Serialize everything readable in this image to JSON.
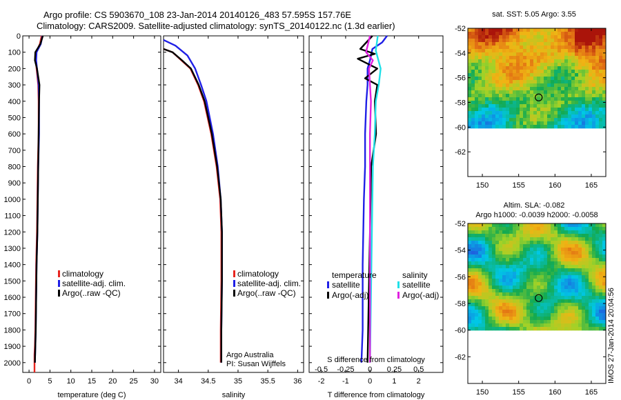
{
  "header": {
    "line1": "Argo profile: CS 5903670_108 23-Jan-2014 20140126_483 57.595S 157.76E",
    "line2": "Climatology: CARS2009. Satellite-adjusted climatology: synTS_20140122.nc (1.3d earlier)"
  },
  "credits": {
    "agency": "Argo Australia",
    "pi": "PI: Susan Wijffels",
    "stamp": "IMOS 27-Jan-2014 20:04:56"
  },
  "colors": {
    "climatology": "#e8251f",
    "satellite_adj": "#1f1fe6",
    "argo": "#000000",
    "sal_satellite": "#20e0e8",
    "sal_argo": "#e020e0"
  },
  "chart_data": [
    {
      "type": "line",
      "name": "temperature-profile",
      "xlabel": "temperature (deg C)",
      "ylabel": "",
      "xlim": [
        -1.5,
        31.5
      ],
      "ylim": [
        2060,
        0
      ],
      "xticks": [
        0,
        5,
        10,
        15,
        20,
        25,
        30
      ],
      "yticks": [
        0,
        100,
        200,
        300,
        400,
        500,
        600,
        700,
        800,
        900,
        1000,
        1100,
        1200,
        1300,
        1400,
        1500,
        1600,
        1700,
        1800,
        1900,
        2000
      ],
      "legend": [
        "climatology",
        "satellite-adj. clim.",
        "Argo(..raw -QC)"
      ],
      "series": [
        {
          "name": "climatology",
          "x": [
            3.0,
            2.6,
            1.7,
            1.6,
            1.8,
            2.2,
            2.3,
            2.3,
            2.1,
            2.0,
            1.9,
            1.7,
            1.6,
            1.5,
            1.4,
            1.3,
            1.3,
            1.3,
            1.3
          ],
          "y": [
            0,
            50,
            100,
            150,
            200,
            300,
            400,
            600,
            800,
            1000,
            1200,
            1400,
            1600,
            1800,
            1900,
            1950,
            2000,
            2030,
            2060
          ]
        },
        {
          "name": "satellite-adj. clim.",
          "x": [
            3.2,
            2.8,
            1.8,
            1.7,
            1.9,
            2.3,
            2.4,
            2.4,
            2.2,
            2.1,
            2.0,
            1.8,
            1.7,
            1.6,
            1.5,
            1.4
          ],
          "y": [
            0,
            50,
            100,
            150,
            200,
            300,
            400,
            600,
            800,
            1000,
            1200,
            1400,
            1600,
            1800,
            1900,
            2000
          ]
        },
        {
          "name": "Argo(..raw -QC)",
          "x": [
            3.3,
            2.7,
            1.5,
            1.4,
            1.9,
            2.5,
            2.4,
            2.3,
            2.2,
            2.1,
            2.0,
            1.8,
            1.7,
            1.6,
            1.5,
            1.4
          ],
          "y": [
            0,
            50,
            100,
            150,
            200,
            300,
            400,
            600,
            800,
            1000,
            1200,
            1400,
            1600,
            1800,
            1900,
            2000
          ]
        }
      ]
    },
    {
      "type": "line",
      "name": "salinity-profile",
      "xlabel": "salinity",
      "ylabel": "",
      "xlim": [
        33.75,
        36.1
      ],
      "ylim": [
        2060,
        0
      ],
      "xticks": [
        34,
        34.5,
        35,
        35.5,
        36
      ],
      "legend": [
        "climatology",
        "satellite-adj. clim.",
        "Argo(..raw -QC)"
      ],
      "series": [
        {
          "name": "climatology",
          "x": [
            33.75,
            33.9,
            34.05,
            34.2,
            34.33,
            34.43,
            34.55,
            34.64,
            34.7,
            34.72,
            34.72,
            34.71,
            34.71
          ],
          "y": [
            80,
            100,
            150,
            200,
            300,
            400,
            600,
            800,
            1000,
            1200,
            1500,
            1800,
            2000
          ]
        },
        {
          "name": "satellite-adj. clim.",
          "x": [
            33.75,
            33.95,
            34.15,
            34.28,
            34.38,
            34.47,
            34.58,
            34.66,
            34.71,
            34.73,
            34.73,
            34.72,
            34.72
          ],
          "y": [
            25,
            60,
            120,
            200,
            300,
            400,
            600,
            800,
            1000,
            1200,
            1500,
            1800,
            2000
          ]
        },
        {
          "name": "Argo(..raw -QC)",
          "x": [
            33.75,
            33.9,
            34.06,
            34.21,
            34.34,
            34.44,
            34.56,
            34.65,
            34.71,
            34.73,
            34.73,
            34.72,
            34.72
          ],
          "y": [
            80,
            100,
            150,
            200,
            300,
            400,
            600,
            800,
            1000,
            1200,
            1500,
            1800,
            2000
          ]
        }
      ]
    },
    {
      "type": "line",
      "name": "difference-from-climatology",
      "xlabel": "T difference from climatology",
      "xlabel_top": "S difference from climatology",
      "xlim": [
        -2.5,
        3.0
      ],
      "xlim_salinity": [
        -0.625,
        0.75
      ],
      "ylim": [
        2060,
        0
      ],
      "xticks": [
        -2,
        -1,
        0,
        1,
        2
      ],
      "xticks_salinity": [
        -0.5,
        -0.25,
        0,
        0.25,
        0.5
      ],
      "legend_titles": [
        "temperature",
        "salinity"
      ],
      "legend": [
        "satellite",
        "Argo(-adj)",
        "satellite",
        "Argo(-adj)"
      ],
      "series": [
        {
          "name": "temperature satellite",
          "x": [
            0.7,
            0.5,
            0.1,
            0.0,
            -0.1,
            -0.1,
            -0.15,
            -0.2,
            -0.2,
            -0.25,
            -0.3,
            -0.3,
            -0.35
          ],
          "y": [
            0,
            40,
            80,
            150,
            200,
            300,
            400,
            600,
            800,
            1000,
            1400,
            1800,
            2000
          ]
        },
        {
          "name": "temperature Argo(-adj)",
          "x": [
            0.1,
            -0.4,
            0.2,
            -0.5,
            0.3,
            -0.2,
            0.3,
            0.2,
            0.25,
            0.05,
            0.0,
            -0.05,
            -0.1
          ],
          "y": [
            0,
            80,
            110,
            140,
            200,
            260,
            300,
            400,
            600,
            800,
            1200,
            1600,
            2000
          ]
        },
        {
          "name": "salinity satellite",
          "x": [
            0.08,
            0.06,
            0.11,
            0.09,
            0.06,
            0.05,
            0.03,
            0.02,
            0.01,
            0.0
          ],
          "y": [
            0,
            90,
            200,
            300,
            400,
            600,
            800,
            1200,
            1600,
            2000
          ]
        },
        {
          "name": "salinity Argo(-adj)",
          "x": [
            0.0,
            -0.04,
            0.03,
            -0.01,
            0.0,
            0.01,
            0.0,
            0.0,
            0.0
          ],
          "y": [
            0,
            100,
            150,
            200,
            300,
            400,
            600,
            1200,
            2000
          ]
        }
      ]
    },
    {
      "type": "heatmap",
      "name": "sst-map",
      "title": "sat. SST: 5.05 Argo: 3.55",
      "xlim": [
        148,
        167
      ],
      "ylim": [
        -64,
        -52
      ],
      "xticks": [
        150,
        155,
        160,
        165
      ],
      "yticks": [
        -52,
        -54,
        -56,
        -58,
        -60,
        -62
      ],
      "data_extent_lat": [
        -60,
        -52
      ],
      "marker": {
        "lon": 157.76,
        "lat": -57.595
      }
    },
    {
      "type": "heatmap",
      "name": "sla-map",
      "title": "Altim. SLA: -0.082",
      "subtitle": "Argo h1000: -0.0039 h2000: -0.0058",
      "xlim": [
        148,
        167
      ],
      "ylim": [
        -64,
        -52
      ],
      "xticks": [
        150,
        155,
        160,
        165
      ],
      "yticks": [
        -52,
        -54,
        -56,
        -58,
        -60,
        -62
      ],
      "data_extent_lat": [
        -60,
        -52
      ],
      "marker": {
        "lon": 157.76,
        "lat": -57.595
      }
    }
  ]
}
